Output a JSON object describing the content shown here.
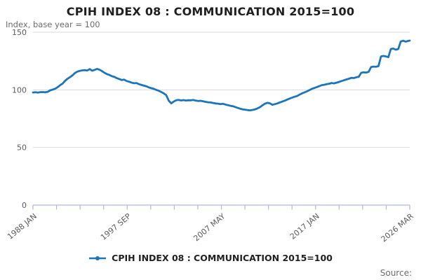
{
  "chart": {
    "title": "CPIH INDEX 08 : COMMUNICATION 2015=100",
    "subtitle": "Index, base year = 100",
    "legend_label": "CPIH INDEX 08 : COMMUNICATION 2015=100",
    "source_label": "Source:",
    "colors": {
      "line": "#1b75bb",
      "grid": "#d9d9d9",
      "axis": "#aeb9d6",
      "tick_text": "#5a5a5a",
      "title_text": "#1f1f1f",
      "muted_text": "#6b6b6b"
    }
  },
  "chart_data": {
    "type": "line",
    "title": "CPIH INDEX 08 : COMMUNICATION 2015=100",
    "xlabel": "",
    "ylabel": "Index, base year = 100",
    "ylim": [
      0,
      150
    ],
    "y_ticks": [
      0,
      50,
      100,
      150
    ],
    "x_tick_count": 17,
    "x_tick_labels": [
      "1988 JAN",
      "1997 SEP",
      "2007 MAY",
      "2017 JAN",
      "2026 MAR"
    ],
    "x_label_every_nth_tick": 4,
    "x_range_months": [
      "1988-01",
      "2026-03"
    ],
    "grid": "horizontal",
    "legend_position": "bottom",
    "series": [
      {
        "name": "CPIH INDEX 08 : COMMUNICATION 2015=100",
        "color": "#1b75bb",
        "points": [
          [
            "1988-01",
            97.7
          ],
          [
            "1988-04",
            97.9
          ],
          [
            "1988-07",
            97.6
          ],
          [
            "1988-10",
            98.0
          ],
          [
            "1989-01",
            98.1
          ],
          [
            "1989-04",
            97.9
          ],
          [
            "1989-07",
            98.3
          ],
          [
            "1989-10",
            99.6
          ],
          [
            "1990-01",
            100.2
          ],
          [
            "1990-04",
            101.0
          ],
          [
            "1990-07",
            102.3
          ],
          [
            "1990-10",
            104.0
          ],
          [
            "1991-01",
            105.4
          ],
          [
            "1991-04",
            107.8
          ],
          [
            "1991-07",
            109.6
          ],
          [
            "1991-10",
            111.0
          ],
          [
            "1992-01",
            112.6
          ],
          [
            "1992-04",
            114.6
          ],
          [
            "1992-07",
            115.8
          ],
          [
            "1992-10",
            116.5
          ],
          [
            "1993-01",
            116.9
          ],
          [
            "1993-04",
            117.1
          ],
          [
            "1993-07",
            116.8
          ],
          [
            "1993-10",
            118.0
          ],
          [
            "1994-01",
            116.6
          ],
          [
            "1994-04",
            117.3
          ],
          [
            "1994-07",
            118.2
          ],
          [
            "1994-10",
            117.4
          ],
          [
            "1995-01",
            116.2
          ],
          [
            "1995-04",
            114.8
          ],
          [
            "1995-07",
            113.6
          ],
          [
            "1995-10",
            112.9
          ],
          [
            "1996-01",
            111.8
          ],
          [
            "1996-04",
            111.2
          ],
          [
            "1996-07",
            110.1
          ],
          [
            "1996-10",
            109.4
          ],
          [
            "1997-01",
            108.5
          ],
          [
            "1997-04",
            108.8
          ],
          [
            "1997-07",
            107.6
          ],
          [
            "1997-10",
            107.0
          ],
          [
            "1998-01",
            106.2
          ],
          [
            "1998-04",
            105.7
          ],
          [
            "1998-07",
            105.9
          ],
          [
            "1998-10",
            104.8
          ],
          [
            "1999-01",
            104.2
          ],
          [
            "1999-04",
            103.6
          ],
          [
            "1999-07",
            103.0
          ],
          [
            "1999-10",
            102.1
          ],
          [
            "2000-01",
            101.4
          ],
          [
            "2000-04",
            100.8
          ],
          [
            "2000-07",
            99.9
          ],
          [
            "2000-10",
            99.2
          ],
          [
            "2001-01",
            98.1
          ],
          [
            "2001-04",
            96.9
          ],
          [
            "2001-07",
            95.4
          ],
          [
            "2001-10",
            90.6
          ],
          [
            "2002-01",
            88.3
          ],
          [
            "2002-04",
            89.8
          ],
          [
            "2002-07",
            90.9
          ],
          [
            "2002-10",
            91.2
          ],
          [
            "2003-01",
            90.8
          ],
          [
            "2003-04",
            91.1
          ],
          [
            "2003-07",
            90.7
          ],
          [
            "2003-10",
            91.0
          ],
          [
            "2004-01",
            90.9
          ],
          [
            "2004-04",
            91.2
          ],
          [
            "2004-07",
            90.6
          ],
          [
            "2004-10",
            90.3
          ],
          [
            "2005-01",
            90.5
          ],
          [
            "2005-04",
            90.0
          ],
          [
            "2005-07",
            89.6
          ],
          [
            "2005-10",
            89.2
          ],
          [
            "2006-01",
            89.0
          ],
          [
            "2006-04",
            88.6
          ],
          [
            "2006-07",
            88.2
          ],
          [
            "2006-10",
            88.0
          ],
          [
            "2007-01",
            87.6
          ],
          [
            "2007-04",
            87.9
          ],
          [
            "2007-07",
            87.2
          ],
          [
            "2007-10",
            86.7
          ],
          [
            "2008-01",
            86.2
          ],
          [
            "2008-04",
            85.8
          ],
          [
            "2008-07",
            85.1
          ],
          [
            "2008-10",
            84.3
          ],
          [
            "2009-01",
            83.6
          ],
          [
            "2009-04",
            83.0
          ],
          [
            "2009-07",
            82.7
          ],
          [
            "2009-10",
            82.4
          ],
          [
            "2010-01",
            82.2
          ],
          [
            "2010-04",
            82.6
          ],
          [
            "2010-07",
            83.1
          ],
          [
            "2010-10",
            83.9
          ],
          [
            "2011-01",
            85.0
          ],
          [
            "2011-04",
            86.6
          ],
          [
            "2011-07",
            88.0
          ],
          [
            "2011-10",
            88.7
          ],
          [
            "2012-01",
            88.3
          ],
          [
            "2012-04",
            87.0
          ],
          [
            "2012-07",
            87.6
          ],
          [
            "2012-10",
            88.2
          ],
          [
            "2013-01",
            89.0
          ],
          [
            "2013-04",
            89.8
          ],
          [
            "2013-07",
            90.6
          ],
          [
            "2013-10",
            91.5
          ],
          [
            "2014-01",
            92.4
          ],
          [
            "2014-04",
            93.2
          ],
          [
            "2014-07",
            94.0
          ],
          [
            "2014-10",
            94.6
          ],
          [
            "2015-01",
            95.8
          ],
          [
            "2015-04",
            96.9
          ],
          [
            "2015-07",
            97.8
          ],
          [
            "2015-10",
            98.7
          ],
          [
            "2016-01",
            99.8
          ],
          [
            "2016-04",
            100.9
          ],
          [
            "2016-07",
            101.6
          ],
          [
            "2016-10",
            102.4
          ],
          [
            "2017-01",
            103.2
          ],
          [
            "2017-04",
            104.1
          ],
          [
            "2017-07",
            104.4
          ],
          [
            "2017-10",
            104.9
          ],
          [
            "2018-01",
            105.3
          ],
          [
            "2018-04",
            105.9
          ],
          [
            "2018-07",
            105.6
          ],
          [
            "2018-10",
            106.2
          ],
          [
            "2019-01",
            106.8
          ],
          [
            "2019-04",
            107.6
          ],
          [
            "2019-07",
            108.3
          ],
          [
            "2019-10",
            109.0
          ],
          [
            "2020-01",
            109.6
          ],
          [
            "2020-04",
            110.4
          ],
          [
            "2020-07",
            110.2
          ],
          [
            "2020-10",
            110.9
          ],
          [
            "2021-01",
            111.4
          ],
          [
            "2021-04",
            114.8
          ],
          [
            "2021-07",
            115.2
          ],
          [
            "2021-10",
            115.0
          ],
          [
            "2022-01",
            115.6
          ],
          [
            "2022-04",
            119.8
          ],
          [
            "2022-07",
            120.2
          ],
          [
            "2022-10",
            120.0
          ],
          [
            "2023-01",
            120.6
          ],
          [
            "2023-04",
            129.0
          ],
          [
            "2023-07",
            129.4
          ],
          [
            "2023-10",
            129.0
          ],
          [
            "2024-01",
            128.4
          ],
          [
            "2024-04",
            135.4
          ],
          [
            "2024-07",
            135.8
          ],
          [
            "2024-10",
            134.8
          ],
          [
            "2025-01",
            135.4
          ],
          [
            "2025-04",
            141.9
          ],
          [
            "2025-07",
            142.6
          ],
          [
            "2025-10",
            141.8
          ],
          [
            "2026-01",
            142.4
          ],
          [
            "2026-03",
            142.7
          ]
        ]
      }
    ]
  }
}
